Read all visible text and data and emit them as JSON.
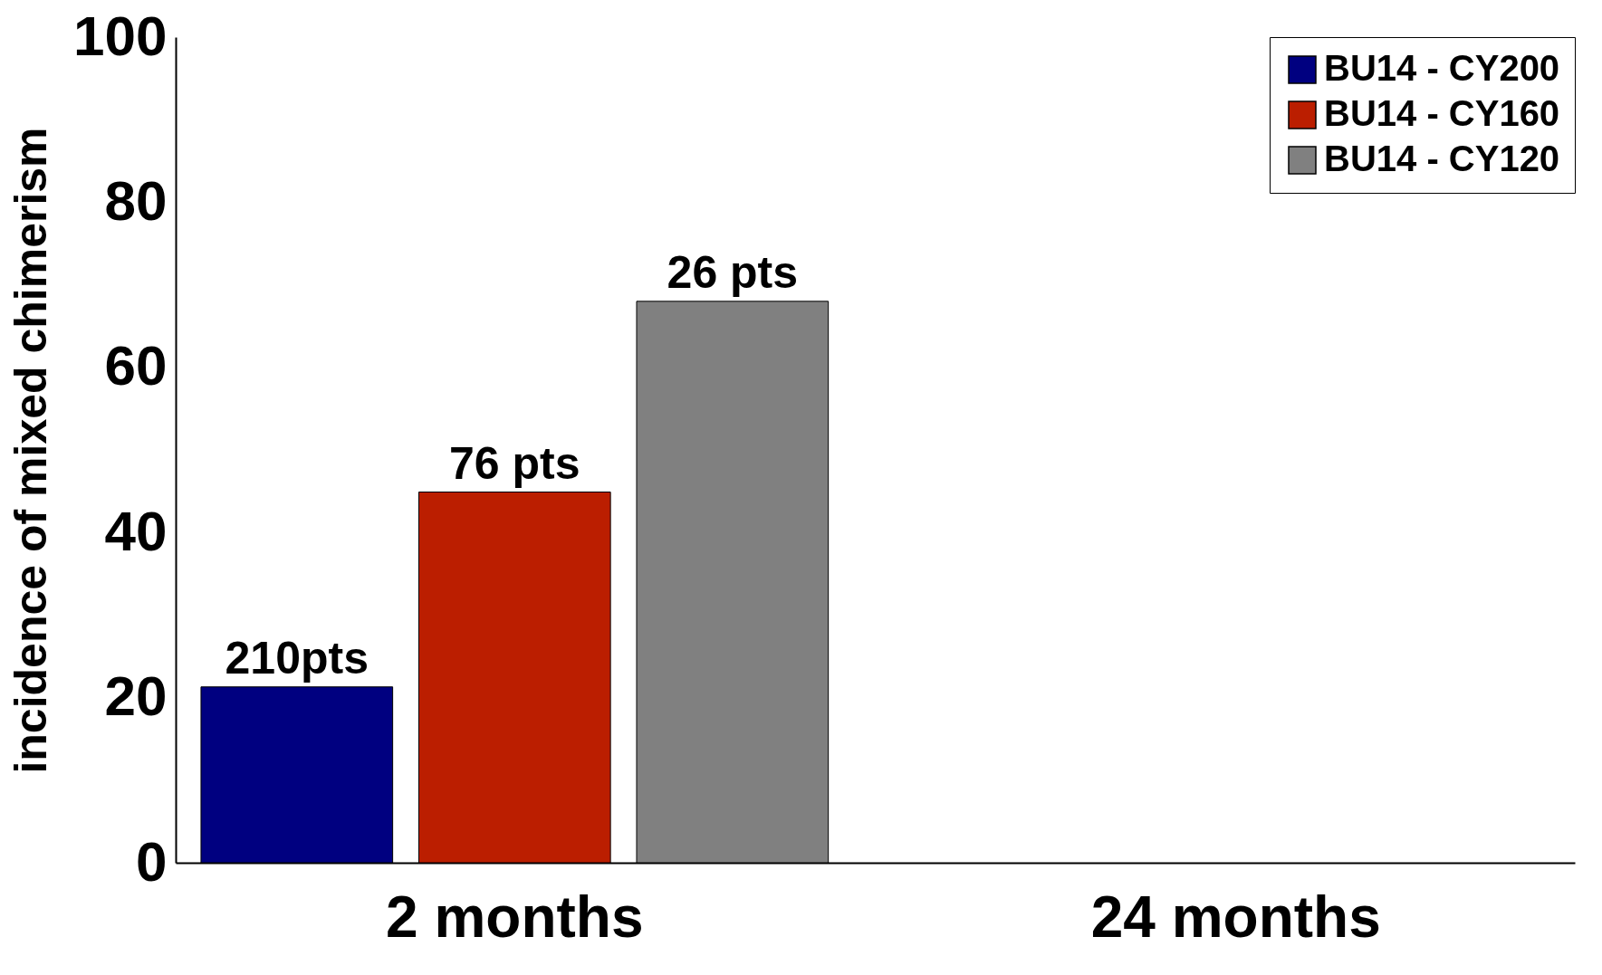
{
  "chart_data": {
    "type": "bar",
    "ylabel": "incidence of mixed chimerism",
    "categories": [
      "2 months",
      "24 months"
    ],
    "series": [
      {
        "name": "BU14 - CY200",
        "color": "#000080",
        "values": [
          21.3,
          null
        ]
      },
      {
        "name": "BU14 - CY160",
        "color": "#bb1e00",
        "values": [
          44.9,
          null
        ]
      },
      {
        "name": "BU14 - CY120",
        "color": "#808080",
        "values": [
          68,
          null
        ]
      }
    ],
    "annotations": [
      "210pts",
      "76 pts",
      "26 pts"
    ],
    "ylim": [
      0,
      100
    ],
    "yticks": [
      0,
      20,
      40,
      60,
      80,
      100
    ],
    "grid": false,
    "legend": "top right"
  }
}
